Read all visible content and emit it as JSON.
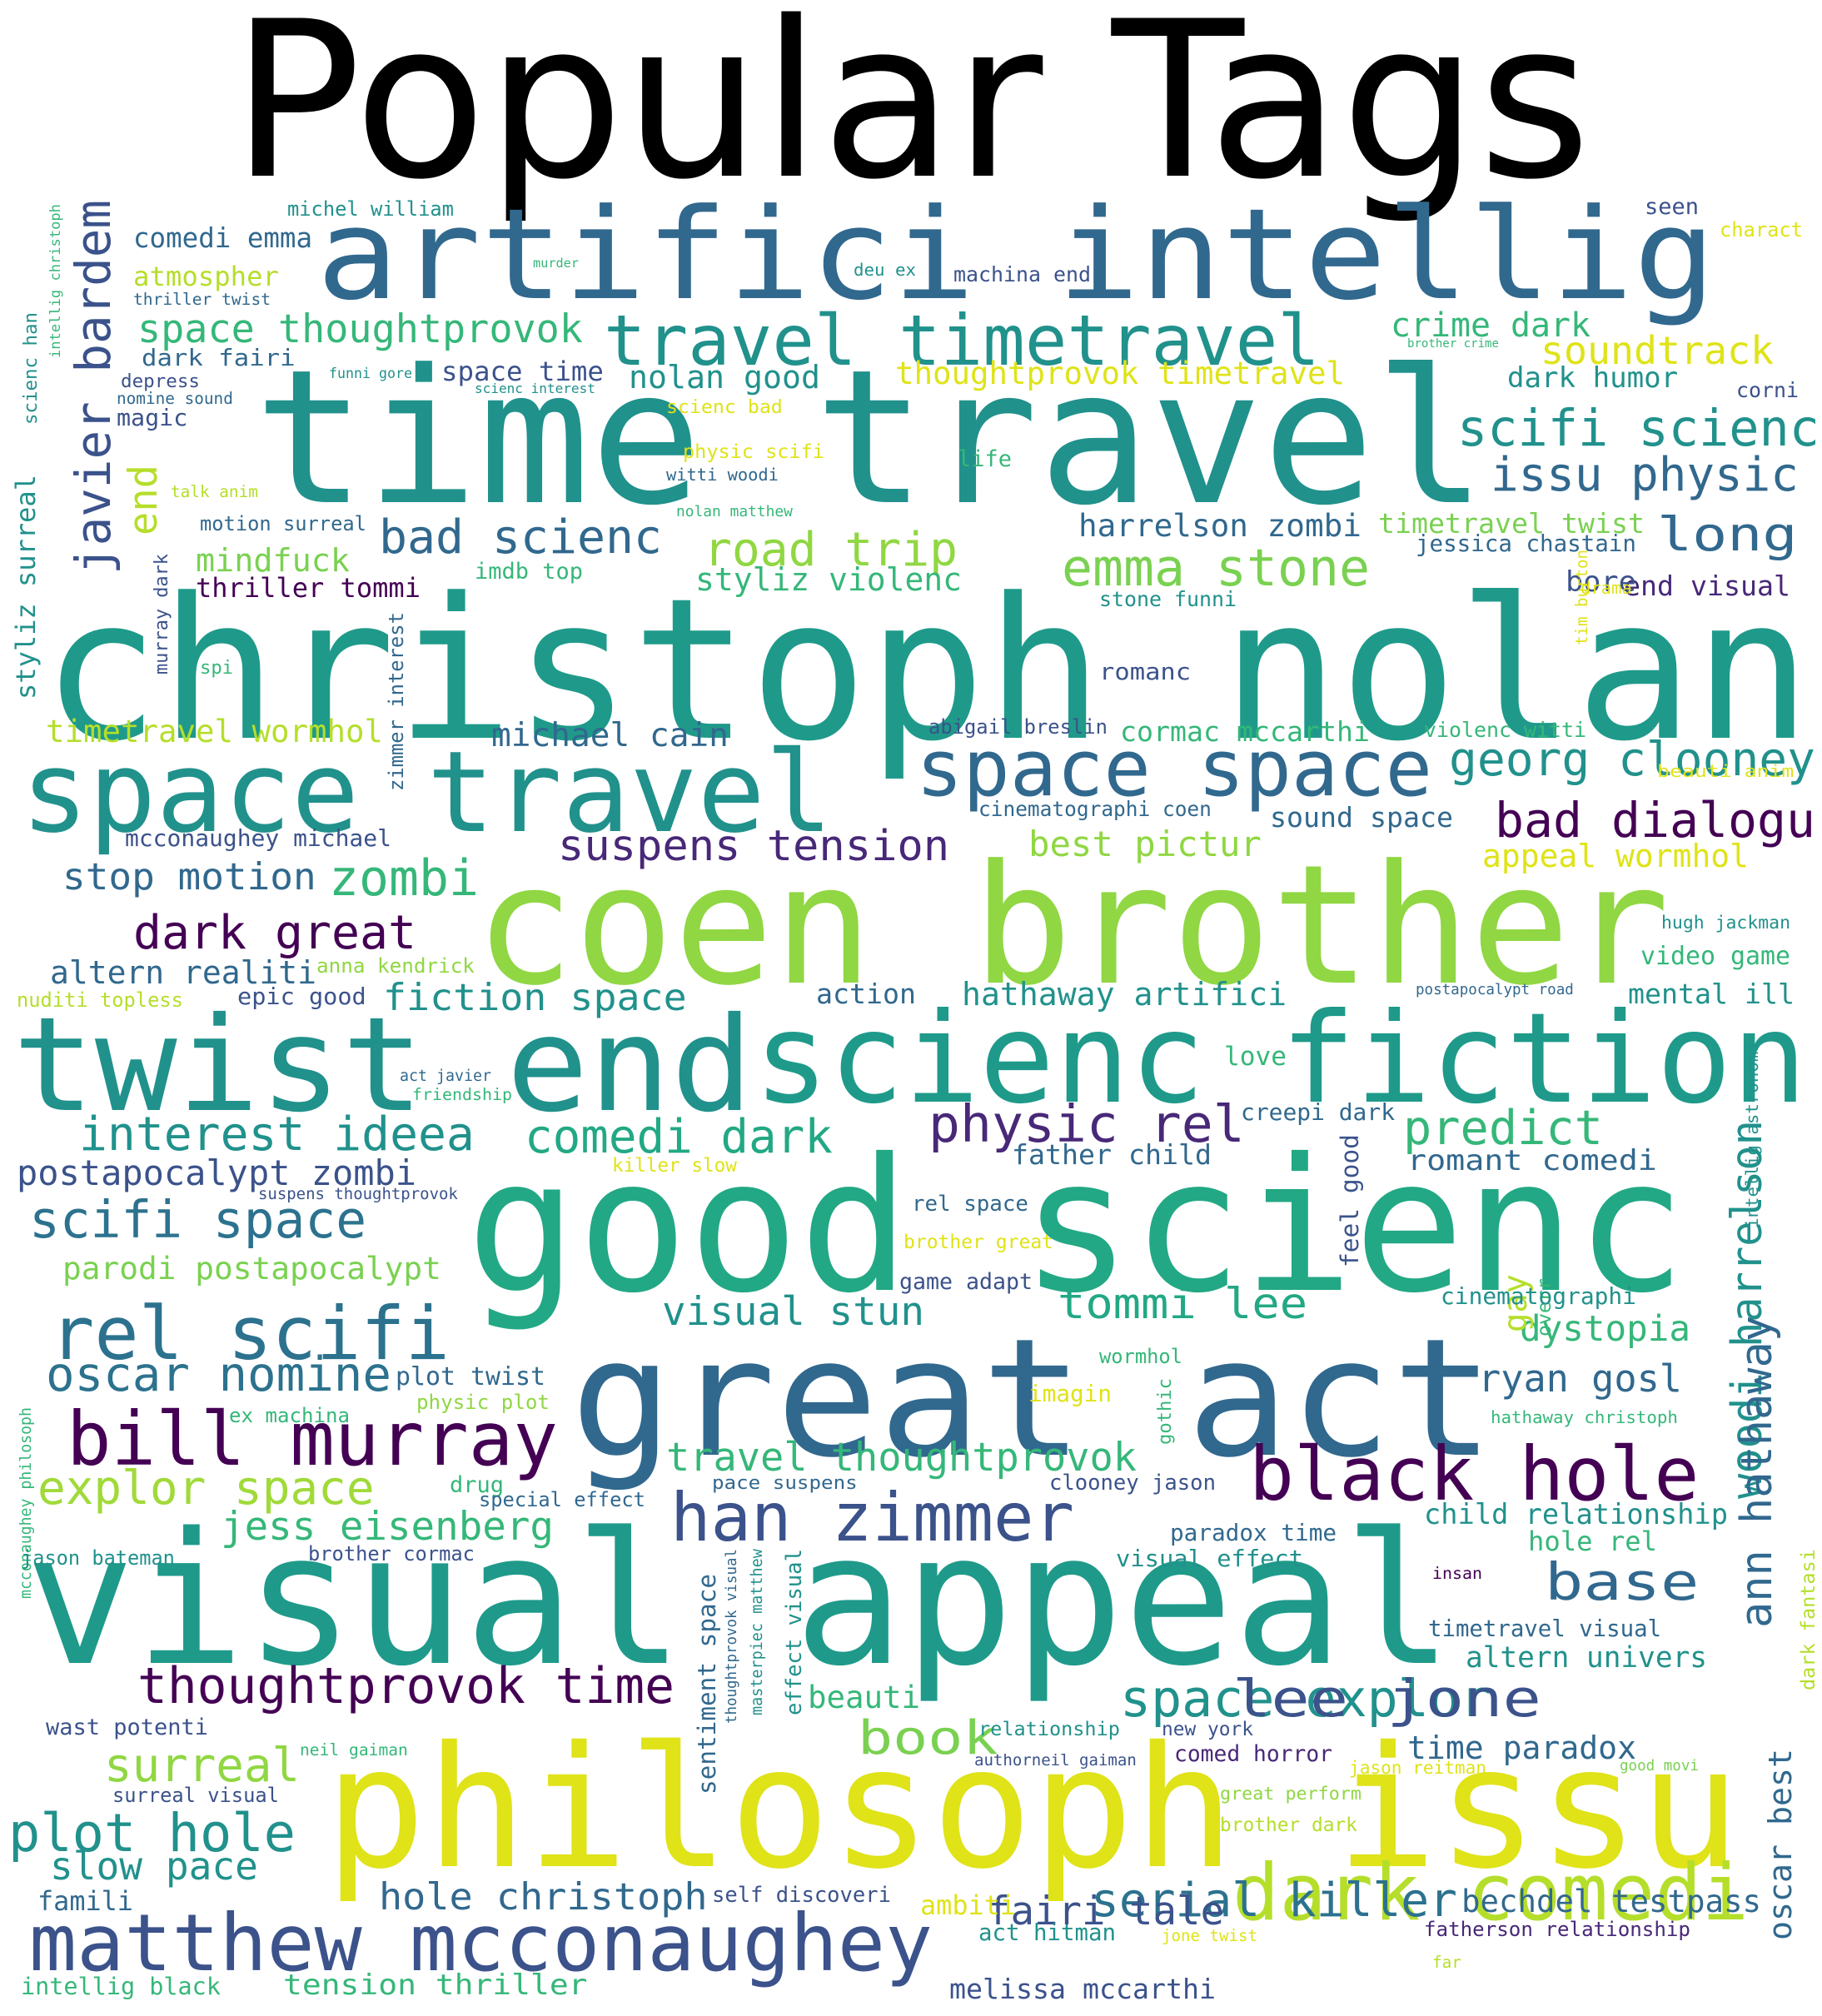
{
  "title": "Popular Tags",
  "palette": {
    "purple": "#440154",
    "indigo": "#3b528b",
    "blue": "#31688e",
    "teal": "#21918c",
    "green": "#35b779",
    "lime": "#90d743",
    "yellow": "#dfe318"
  },
  "words": [
    {
      "text": "artifici intellig",
      "color": "#31688e"
    },
    {
      "text": "time travel",
      "color": "#21918c"
    },
    {
      "text": "christoph nolan",
      "color": "#1f9a8a"
    },
    {
      "text": "coen brother",
      "color": "#90d743"
    },
    {
      "text": "good scienc",
      "color": "#22a884"
    },
    {
      "text": "great act",
      "color": "#31688e"
    },
    {
      "text": "visual appeal",
      "color": "#1f9a8a"
    },
    {
      "text": "philosoph issu",
      "color": "#dfe318"
    },
    {
      "text": "twist end",
      "color": "#21918c"
    },
    {
      "text": "scienc fiction",
      "color": "#1f9a8a"
    },
    {
      "text": "space travel",
      "color": "#21918c"
    },
    {
      "text": "travel timetravel",
      "color": "#21918c"
    },
    {
      "text": "space space",
      "color": "#31688e"
    },
    {
      "text": "bill murray",
      "color": "#440154"
    },
    {
      "text": "black hole",
      "color": "#440154"
    },
    {
      "text": "matthew mcconaughey",
      "color": "#3b528b"
    },
    {
      "text": "han zimmer",
      "color": "#3b528b"
    },
    {
      "text": "dark comedi",
      "color": "#b5de2b"
    },
    {
      "text": "rel scifi",
      "color": "#2c728e"
    },
    {
      "text": "emma stone",
      "color": "#7ad151"
    },
    {
      "text": "thoughtprovok time",
      "color": "#440154"
    },
    {
      "text": "space thoughtprovok",
      "color": "#35b779"
    },
    {
      "text": "scifi scienc",
      "color": "#21918c"
    },
    {
      "text": "georg clooney",
      "color": "#21918c"
    },
    {
      "text": "serial killer",
      "color": "#2c728e"
    },
    {
      "text": "space explor",
      "color": "#21918c"
    },
    {
      "text": "lee jone",
      "color": "#3b528b"
    },
    {
      "text": "woodi harrelson",
      "color": "#21918c"
    },
    {
      "text": "ann hathaway",
      "color": "#31688e"
    },
    {
      "text": "javier bardem",
      "color": "#3b528b"
    },
    {
      "text": "road trip",
      "color": "#90d743"
    },
    {
      "text": "bad scienc",
      "color": "#31688e"
    },
    {
      "text": "issu physic",
      "color": "#31688e"
    },
    {
      "text": "dark great",
      "color": "#440154"
    },
    {
      "text": "physic rel",
      "color": "#482878"
    },
    {
      "text": "oscar nomine",
      "color": "#2c728e"
    },
    {
      "text": "explor space",
      "color": "#a0da39"
    },
    {
      "text": "base",
      "color": "#31688e"
    },
    {
      "text": "plot hole",
      "color": "#21918c"
    },
    {
      "text": "surreal",
      "color": "#90d743"
    },
    {
      "text": "bad dialogu",
      "color": "#440154"
    },
    {
      "text": "soundtrack",
      "color": "#dfe318"
    },
    {
      "text": "crime dark",
      "color": "#35b779"
    },
    {
      "text": "zombi",
      "color": "#35b779"
    },
    {
      "text": "scifi space",
      "color": "#2c728e"
    },
    {
      "text": "interest ideea",
      "color": "#21918c"
    },
    {
      "text": "comedi dark",
      "color": "#22a884"
    },
    {
      "text": "predict",
      "color": "#35b779"
    },
    {
      "text": "jess eisenberg",
      "color": "#35b779"
    },
    {
      "text": "travel thoughtprovok",
      "color": "#35b779"
    },
    {
      "text": "visual stun",
      "color": "#21918c"
    },
    {
      "text": "tommi lee",
      "color": "#22a884"
    },
    {
      "text": "long",
      "color": "#31688e"
    },
    {
      "text": "ryan gosl",
      "color": "#31688e"
    },
    {
      "text": "dystopia",
      "color": "#35b779"
    },
    {
      "text": "book",
      "color": "#7ad151"
    },
    {
      "text": "time paradox",
      "color": "#31688e"
    },
    {
      "text": "slow pace",
      "color": "#21918c"
    },
    {
      "text": "suspens tension",
      "color": "#482878"
    },
    {
      "text": "stop motion",
      "color": "#31688e"
    },
    {
      "text": "fairi tale",
      "color": "#3b528b"
    },
    {
      "text": "hole christoph",
      "color": "#31688e"
    },
    {
      "text": "bechdel testpass",
      "color": "#31688e"
    },
    {
      "text": "altern univers",
      "color": "#21918c"
    },
    {
      "text": "timetravel visual",
      "color": "#31688e"
    },
    {
      "text": "mindfuck",
      "color": "#7ad151"
    },
    {
      "text": "thoughtprovok timetravel",
      "color": "#dfe318"
    },
    {
      "text": "nolan good",
      "color": "#21918c"
    },
    {
      "text": "scienc han",
      "color": "#21918c"
    },
    {
      "text": "michael cain",
      "color": "#31688e"
    },
    {
      "text": "best pictur",
      "color": "#90d743"
    },
    {
      "text": "appeal wormhol",
      "color": "#dfe318"
    },
    {
      "text": "fiction space",
      "color": "#21918c"
    },
    {
      "text": "hathaway artifici",
      "color": "#21918c"
    },
    {
      "text": "harrelson zombi",
      "color": "#31688e"
    },
    {
      "text": "parodi postapocalypt",
      "color": "#7ad151"
    },
    {
      "text": "postapocalypt zombi",
      "color": "#3b528b"
    },
    {
      "text": "altern realiti",
      "color": "#31688e"
    },
    {
      "text": "timetravel wormhol",
      "color": "#b5de2b"
    },
    {
      "text": "dark humor",
      "color": "#21918c"
    },
    {
      "text": "oscar best",
      "color": "#31688e"
    },
    {
      "text": "comedi emma",
      "color": "#31688e"
    },
    {
      "text": "atmospher",
      "color": "#b5de2b"
    },
    {
      "text": "styliz violenc",
      "color": "#35b779"
    },
    {
      "text": "timetravel twist",
      "color": "#7ad151"
    },
    {
      "text": "thriller tommi",
      "color": "#440154"
    },
    {
      "text": "end visual",
      "color": "#482878"
    },
    {
      "text": "bore",
      "color": "#3b528b"
    },
    {
      "text": "end",
      "color": "#b5de2b"
    },
    {
      "text": "styliz surreal",
      "color": "#21918c"
    },
    {
      "text": "space time",
      "color": "#3b528b"
    },
    {
      "text": "dark fairi",
      "color": "#31688e"
    },
    {
      "text": "depress",
      "color": "#3b528b"
    },
    {
      "text": "nomine sound",
      "color": "#31688e"
    },
    {
      "text": "magic",
      "color": "#3b528b"
    },
    {
      "text": "imdb top",
      "color": "#35b779"
    },
    {
      "text": "motion surreal",
      "color": "#31688e"
    },
    {
      "text": "cormac mccarthi",
      "color": "#35b779"
    },
    {
      "text": "abigail breslin",
      "color": "#3b528b"
    },
    {
      "text": "sound space",
      "color": "#31688e"
    },
    {
      "text": "violenc witti",
      "color": "#35b779"
    },
    {
      "text": "cinematographi coen",
      "color": "#31688e"
    },
    {
      "text": "mcconaughey michael",
      "color": "#3b528b"
    },
    {
      "text": "hugh jackman",
      "color": "#21918c"
    },
    {
      "text": "video game",
      "color": "#35b779"
    },
    {
      "text": "mental ill",
      "color": "#21918c"
    },
    {
      "text": "action",
      "color": "#31688e"
    },
    {
      "text": "epic good",
      "color": "#3b528b"
    },
    {
      "text": "anna kendrick",
      "color": "#90d743"
    },
    {
      "text": "nuditi topless",
      "color": "#b5de2b"
    },
    {
      "text": "postapocalypt road",
      "color": "#31688e"
    },
    {
      "text": "love",
      "color": "#35b779"
    },
    {
      "text": "act javier",
      "color": "#31688e"
    },
    {
      "text": "friendship",
      "color": "#35b779"
    },
    {
      "text": "creepi dark",
      "color": "#31688e"
    },
    {
      "text": "father child",
      "color": "#31688e"
    },
    {
      "text": "romant comedi",
      "color": "#31688e"
    },
    {
      "text": "killer slow",
      "color": "#dfe318"
    },
    {
      "text": "suspens thoughtprovok",
      "color": "#3b528b"
    },
    {
      "text": "rel space",
      "color": "#31688e"
    },
    {
      "text": "brother great",
      "color": "#dfe318"
    },
    {
      "text": "game adapt",
      "color": "#3b528b"
    },
    {
      "text": "feel good",
      "color": "#3b528b"
    },
    {
      "text": "intellig astronomi",
      "color": "#21918c"
    },
    {
      "text": "gay",
      "color": "#b5de2b"
    },
    {
      "text": "overr",
      "color": "#35b779"
    },
    {
      "text": "cinematographi",
      "color": "#21918c"
    },
    {
      "text": "wormhol",
      "color": "#35b779"
    },
    {
      "text": "imagin",
      "color": "#dfe318"
    },
    {
      "text": "gothic",
      "color": "#35b779"
    },
    {
      "text": "hathaway christoph",
      "color": "#35b779"
    },
    {
      "text": "plot twist",
      "color": "#31688e"
    },
    {
      "text": "physic plot",
      "color": "#90d743"
    },
    {
      "text": "ex machina",
      "color": "#35b779"
    },
    {
      "text": "drug",
      "color": "#35b779"
    },
    {
      "text": "special effect",
      "color": "#31688e"
    },
    {
      "text": "pace suspens",
      "color": "#31688e"
    },
    {
      "text": "clooney jason",
      "color": "#3b528b"
    },
    {
      "text": "paradox time",
      "color": "#31688e"
    },
    {
      "text": "child relationship",
      "color": "#21918c"
    },
    {
      "text": "hole rel",
      "color": "#35b779"
    },
    {
      "text": "visual effect",
      "color": "#21918c"
    },
    {
      "text": "insan",
      "color": "#440154"
    },
    {
      "text": "dark fantasi",
      "color": "#b5de2b"
    },
    {
      "text": "mcconaughey philosoph",
      "color": "#35b779"
    },
    {
      "text": "jason bateman",
      "color": "#21918c"
    },
    {
      "text": "brother cormac",
      "color": "#3b528b"
    },
    {
      "text": "sentiment space",
      "color": "#31688e"
    },
    {
      "text": "thoughtprovok visual",
      "color": "#31688e"
    },
    {
      "text": "masterpiec matthew",
      "color": "#21918c"
    },
    {
      "text": "effect visual",
      "color": "#21918c"
    },
    {
      "text": "beauti",
      "color": "#35b779"
    },
    {
      "text": "relationship",
      "color": "#21918c"
    },
    {
      "text": "new york",
      "color": "#3b528b"
    },
    {
      "text": "wast potenti",
      "color": "#3b528b"
    },
    {
      "text": "neil gaiman",
      "color": "#35b779"
    },
    {
      "text": "authorneil gaiman",
      "color": "#3b528b"
    },
    {
      "text": "comed horror",
      "color": "#482878"
    },
    {
      "text": "jason reitman",
      "color": "#dfe318"
    },
    {
      "text": "good movi",
      "color": "#7ad151"
    },
    {
      "text": "great perform",
      "color": "#90d743"
    },
    {
      "text": "brother dark",
      "color": "#b5de2b"
    },
    {
      "text": "surreal visual",
      "color": "#3b528b"
    },
    {
      "text": "famili",
      "color": "#31688e"
    },
    {
      "text": "self discoveri",
      "color": "#3b528b"
    },
    {
      "text": "ambiti",
      "color": "#dfe318"
    },
    {
      "text": "act hitman",
      "color": "#21918c"
    },
    {
      "text": "jone twist",
      "color": "#dfe318"
    },
    {
      "text": "fatherson relationship",
      "color": "#482878"
    },
    {
      "text": "far",
      "color": "#b5de2b"
    },
    {
      "text": "melissa mccarthi",
      "color": "#3b528b"
    },
    {
      "text": "intellig black",
      "color": "#35b779"
    },
    {
      "text": "tension thriller",
      "color": "#35b779"
    },
    {
      "text": "michel william",
      "color": "#21918c"
    },
    {
      "text": "murder",
      "color": "#35b779"
    },
    {
      "text": "deu ex",
      "color": "#21918c"
    },
    {
      "text": "machina end",
      "color": "#3b528b"
    },
    {
      "text": "intellig christoph",
      "color": "#35b779"
    },
    {
      "text": "thriller twist",
      "color": "#31688e"
    },
    {
      "text": "funni gore",
      "color": "#21918c"
    },
    {
      "text": "scienc interest",
      "color": "#21918c"
    },
    {
      "text": "scienc bad",
      "color": "#dfe318"
    },
    {
      "text": "physic scifi",
      "color": "#dfe318"
    },
    {
      "text": "witti woodi",
      "color": "#31688e"
    },
    {
      "text": "life",
      "color": "#35b779"
    },
    {
      "text": "talk anim",
      "color": "#b5de2b"
    },
    {
      "text": "nolan matthew",
      "color": "#35b779"
    },
    {
      "text": "seen",
      "color": "#3b528b"
    },
    {
      "text": "charact",
      "color": "#dfe318"
    },
    {
      "text": "brother crime",
      "color": "#35b779"
    },
    {
      "text": "corni",
      "color": "#3b528b"
    },
    {
      "text": "jessica chastain",
      "color": "#31688e"
    },
    {
      "text": "drama",
      "color": "#dfe318"
    },
    {
      "text": "stone funni",
      "color": "#21918c"
    },
    {
      "text": "tim burton",
      "color": "#dfe318"
    },
    {
      "text": "romanc",
      "color": "#3b528b"
    },
    {
      "text": "murray dark",
      "color": "#3b528b"
    },
    {
      "text": "spi",
      "color": "#35b779"
    },
    {
      "text": "zimmer interest",
      "color": "#31688e"
    },
    {
      "text": "beauti anim",
      "color": "#dfe318"
    }
  ]
}
